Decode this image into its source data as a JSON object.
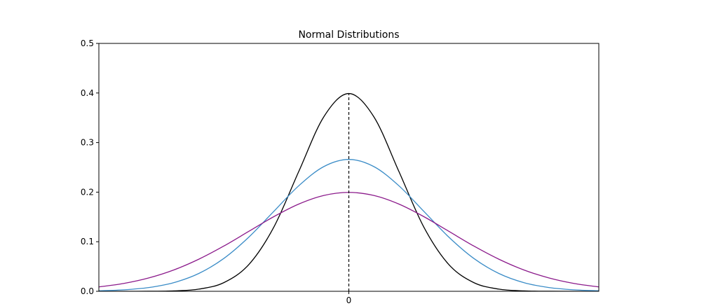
{
  "chart_data": {
    "type": "line",
    "title": "Normal Distributions",
    "x": [
      -5,
      -4.5,
      -4,
      -3.5,
      -3,
      -2.5,
      -2,
      -1.5,
      -1,
      -0.5,
      0,
      0.5,
      1,
      1.5,
      2,
      2.5,
      3,
      3.5,
      4,
      4.5,
      5
    ],
    "series": [
      {
        "color": "#000000",
        "values": [
          0.0,
          0.0,
          0.0001,
          0.0009,
          0.0044,
          0.0175,
          0.054,
          0.1295,
          0.242,
          0.3521,
          0.3989,
          0.3521,
          0.242,
          0.1295,
          0.054,
          0.0175,
          0.0044,
          0.0009,
          0.0001,
          0.0,
          0.0
        ]
      },
      {
        "color": "#3a8cc7",
        "values": [
          0.001,
          0.003,
          0.0076,
          0.0175,
          0.036,
          0.0663,
          0.1093,
          0.1613,
          0.213,
          0.2516,
          0.266,
          0.2516,
          0.213,
          0.1613,
          0.1093,
          0.0663,
          0.036,
          0.0175,
          0.0076,
          0.003,
          0.001
        ]
      },
      {
        "color": "#8b1a8b",
        "values": [
          0.0088,
          0.0159,
          0.027,
          0.0431,
          0.0648,
          0.0913,
          0.121,
          0.1506,
          0.176,
          0.1933,
          0.1995,
          0.1933,
          0.176,
          0.1506,
          0.121,
          0.0913,
          0.0648,
          0.0431,
          0.027,
          0.0159,
          0.0088
        ]
      }
    ],
    "vline": {
      "x": 0,
      "ymax": 0.3989
    },
    "xlim": [
      -5,
      5
    ],
    "xticks": [
      0
    ],
    "ylim": [
      0,
      0.5
    ],
    "yticks": [
      0.0,
      0.1,
      0.2,
      0.3,
      0.4,
      0.5
    ]
  }
}
